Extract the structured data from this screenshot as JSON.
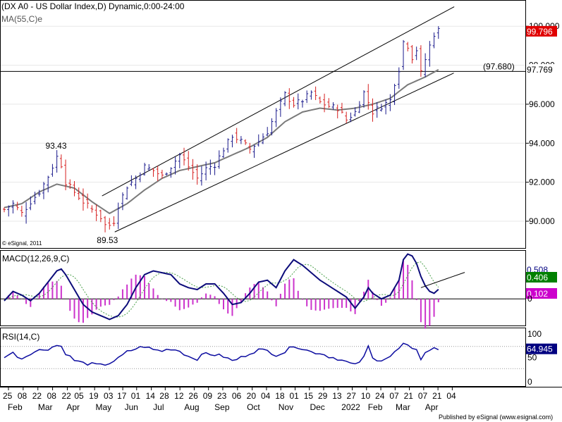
{
  "header": {
    "title": "(DX A0 - US Dollar Index,D) Dynamic,0:00-24:00",
    "ma_label": "MA(55,C)e",
    "watermark": "© eSignal, 2011",
    "publisher": "Published by eSignal (www.esignal.com)"
  },
  "colors": {
    "up": "#1a1a8c",
    "down": "#d62020",
    "ma": "#7a7a7a",
    "macd": "#0c0c7a",
    "signal": "#4aa04a",
    "hist": "#cc33cc",
    "rsi": "#0c0ca0",
    "price_badge": "#e00000",
    "macd_badge": "#000080",
    "signal_badge": "#008000",
    "hist_badge": "#cc00cc",
    "rsi_badge": "#000080"
  },
  "chart_data": {
    "type": "line",
    "price": {
      "ylim": [
        88.7,
        101.2
      ],
      "ticks": [
        {
          "value": 90,
          "label": "90.000"
        },
        {
          "value": 92,
          "label": "92.000"
        },
        {
          "value": 94,
          "label": "94.000"
        },
        {
          "value": 96,
          "label": "96.000"
        },
        {
          "value": 98,
          "label": "98.000"
        },
        {
          "value": 100,
          "label": "100.000"
        }
      ],
      "last_value": 99.796,
      "last_label": "99.796",
      "ma_last_label": "97.769",
      "ma_last_value": 97.769,
      "horizontal_level": 97.68,
      "horizontal_level_label": "(97.680)",
      "annotations": [
        {
          "label": "93.43",
          "x": 12.3,
          "value": 93.43
        },
        {
          "label": "89.53",
          "x": 24.0,
          "value": 89.53
        }
      ],
      "channel_upper": [
        {
          "x": 22.3,
          "y": 91.3
        },
        {
          "x": 102.6,
          "y": 101.0
        }
      ],
      "channel_lower": [
        {
          "x": 25.2,
          "y": 89.45
        },
        {
          "x": 102.5,
          "y": 97.6
        }
      ],
      "ohlc_anchors": [
        [
          0,
          90.6
        ],
        [
          2,
          90.9
        ],
        [
          4,
          90.4
        ],
        [
          6,
          91.0
        ],
        [
          8,
          91.5
        ],
        [
          10,
          92.3
        ],
        [
          12,
          93.3
        ],
        [
          13,
          92.9
        ],
        [
          14,
          92.0
        ],
        [
          16,
          91.5
        ],
        [
          18,
          91.0
        ],
        [
          20,
          90.6
        ],
        [
          22,
          90.2
        ],
        [
          23,
          89.8
        ],
        [
          24,
          89.8
        ],
        [
          25,
          90.0
        ],
        [
          26,
          90.8
        ],
        [
          28,
          91.8
        ],
        [
          30,
          92.2
        ],
        [
          32,
          92.8
        ],
        [
          34,
          92.6
        ],
        [
          36,
          92.3
        ],
        [
          38,
          92.8
        ],
        [
          40,
          93.4
        ],
        [
          42,
          92.8
        ],
        [
          44,
          92.2
        ],
        [
          46,
          92.7
        ],
        [
          48,
          92.9
        ],
        [
          50,
          93.7
        ],
        [
          52,
          94.4
        ],
        [
          54,
          94.1
        ],
        [
          56,
          93.7
        ],
        [
          58,
          94.1
        ],
        [
          60,
          94.6
        ],
        [
          62,
          95.6
        ],
        [
          64,
          96.5
        ],
        [
          66,
          96.0
        ],
        [
          68,
          96.2
        ],
        [
          70,
          96.6
        ],
        [
          72,
          96.1
        ],
        [
          74,
          95.9
        ],
        [
          76,
          95.8
        ],
        [
          78,
          95.2
        ],
        [
          80,
          95.6
        ],
        [
          82,
          96.6
        ],
        [
          84,
          95.6
        ],
        [
          86,
          95.9
        ],
        [
          88,
          96.2
        ],
        [
          89,
          97.1
        ],
        [
          90,
          97.8
        ],
        [
          91,
          99.2
        ],
        [
          92,
          99.0
        ],
        [
          93,
          98.4
        ],
        [
          94,
          98.8
        ],
        [
          95,
          97.6
        ],
        [
          96,
          98.3
        ],
        [
          97,
          99.0
        ],
        [
          98,
          99.6
        ],
        [
          99,
          99.8
        ]
      ],
      "ma_anchors": [
        [
          0,
          90.7
        ],
        [
          4,
          90.9
        ],
        [
          8,
          91.5
        ],
        [
          12,
          91.9
        ],
        [
          16,
          91.7
        ],
        [
          20,
          91.0
        ],
        [
          24,
          90.4
        ],
        [
          28,
          90.9
        ],
        [
          32,
          91.6
        ],
        [
          36,
          92.2
        ],
        [
          40,
          92.6
        ],
        [
          44,
          92.8
        ],
        [
          48,
          93.0
        ],
        [
          52,
          93.4
        ],
        [
          56,
          93.8
        ],
        [
          60,
          94.3
        ],
        [
          64,
          95.1
        ],
        [
          68,
          95.6
        ],
        [
          72,
          95.8
        ],
        [
          76,
          95.7
        ],
        [
          80,
          95.8
        ],
        [
          84,
          96.0
        ],
        [
          88,
          96.3
        ],
        [
          92,
          97.0
        ],
        [
          96,
          97.4
        ],
        [
          99,
          97.77
        ]
      ]
    },
    "macd": {
      "title": "MACD(12,26,9,C)",
      "ylim": [
        -1.35,
        2.5
      ],
      "zero_label": "0",
      "macd_last": 0.508,
      "signal_last": 0.406,
      "hist_last": 0.102,
      "macd_label": "0.508",
      "signal_label": "0.406",
      "hist_label": "0.102",
      "trendline": [
        {
          "x": 95.0,
          "y": 0.6
        },
        {
          "x": 105.0,
          "y": 1.42
        }
      ],
      "macd_anchors": [
        [
          0,
          -0.1
        ],
        [
          2,
          0.4
        ],
        [
          4,
          0.2
        ],
        [
          6,
          -0.1
        ],
        [
          8,
          0.3
        ],
        [
          10,
          0.9
        ],
        [
          12,
          1.5
        ],
        [
          13,
          1.6
        ],
        [
          14,
          1.3
        ],
        [
          16,
          0.5
        ],
        [
          18,
          -0.3
        ],
        [
          20,
          -0.7
        ],
        [
          22,
          -0.9
        ],
        [
          24,
          -1.1
        ],
        [
          26,
          -0.9
        ],
        [
          28,
          -0.3
        ],
        [
          30,
          0.6
        ],
        [
          32,
          1.3
        ],
        [
          34,
          1.5
        ],
        [
          36,
          1.4
        ],
        [
          38,
          1.3
        ],
        [
          40,
          0.8
        ],
        [
          42,
          0.6
        ],
        [
          44,
          0.5
        ],
        [
          46,
          0.8
        ],
        [
          48,
          0.8
        ],
        [
          50,
          0.3
        ],
        [
          52,
          -0.3
        ],
        [
          54,
          -0.2
        ],
        [
          56,
          0.3
        ],
        [
          58,
          0.9
        ],
        [
          60,
          1.0
        ],
        [
          62,
          0.6
        ],
        [
          64,
          1.5
        ],
        [
          66,
          2.1
        ],
        [
          68,
          1.8
        ],
        [
          70,
          1.4
        ],
        [
          72,
          1.0
        ],
        [
          74,
          0.7
        ],
        [
          76,
          0.4
        ],
        [
          78,
          0.1
        ],
        [
          80,
          -0.5
        ],
        [
          82,
          0.1
        ],
        [
          83,
          0.6
        ],
        [
          84,
          0.3
        ],
        [
          86,
          0.0
        ],
        [
          88,
          0.2
        ],
        [
          90,
          1.0
        ],
        [
          91,
          2.1
        ],
        [
          92,
          2.4
        ],
        [
          93,
          2.3
        ],
        [
          94,
          1.9
        ],
        [
          95,
          1.2
        ],
        [
          96,
          0.7
        ],
        [
          97,
          0.4
        ],
        [
          98,
          0.3
        ],
        [
          99,
          0.508
        ]
      ]
    },
    "rsi": {
      "title": "RSI(14,C)",
      "ylim": [
        0,
        100
      ],
      "ticks": [
        {
          "value": 0,
          "label": "0"
        },
        {
          "value": 50,
          "label": "50"
        },
        {
          "value": 100,
          "label": "100"
        }
      ],
      "levels": [
        30,
        70
      ],
      "last_value": 64.945,
      "last_label": "64.945",
      "anchors": [
        [
          0,
          52
        ],
        [
          2,
          58
        ],
        [
          4,
          48
        ],
        [
          6,
          58
        ],
        [
          8,
          63
        ],
        [
          10,
          66
        ],
        [
          12,
          72
        ],
        [
          13,
          70
        ],
        [
          14,
          58
        ],
        [
          16,
          45
        ],
        [
          18,
          40
        ],
        [
          20,
          38
        ],
        [
          22,
          36
        ],
        [
          24,
          40
        ],
        [
          26,
          48
        ],
        [
          28,
          60
        ],
        [
          30,
          66
        ],
        [
          32,
          70
        ],
        [
          34,
          64
        ],
        [
          36,
          62
        ],
        [
          38,
          66
        ],
        [
          40,
          62
        ],
        [
          42,
          52
        ],
        [
          44,
          48
        ],
        [
          46,
          58
        ],
        [
          48,
          55
        ],
        [
          50,
          52
        ],
        [
          52,
          44
        ],
        [
          54,
          50
        ],
        [
          56,
          58
        ],
        [
          58,
          64
        ],
        [
          60,
          62
        ],
        [
          62,
          55
        ],
        [
          64,
          60
        ],
        [
          66,
          72
        ],
        [
          68,
          66
        ],
        [
          70,
          60
        ],
        [
          72,
          58
        ],
        [
          74,
          52
        ],
        [
          76,
          48
        ],
        [
          78,
          42
        ],
        [
          80,
          36
        ],
        [
          82,
          50
        ],
        [
          83,
          70
        ],
        [
          84,
          48
        ],
        [
          86,
          46
        ],
        [
          88,
          52
        ],
        [
          90,
          66
        ],
        [
          91,
          74
        ],
        [
          92,
          70
        ],
        [
          93,
          64
        ],
        [
          94,
          66
        ],
        [
          95,
          48
        ],
        [
          96,
          58
        ],
        [
          97,
          64
        ],
        [
          98,
          66
        ],
        [
          99,
          64.945
        ]
      ]
    },
    "x_axis": {
      "bars": 100,
      "date_labels": [
        {
          "i": 0,
          "label": "25"
        },
        {
          "i": 3.5,
          "label": "08"
        },
        {
          "i": 7,
          "label": "22"
        },
        {
          "i": 10.5,
          "label": "08"
        },
        {
          "i": 14,
          "label": "22"
        },
        {
          "i": 17,
          "label": "05"
        },
        {
          "i": 20.5,
          "label": "19"
        },
        {
          "i": 24,
          "label": "03"
        },
        {
          "i": 27.2,
          "label": "17"
        },
        {
          "i": 30.5,
          "label": "01"
        },
        {
          "i": 34,
          "label": "14"
        },
        {
          "i": 37.3,
          "label": "28"
        },
        {
          "i": 40.8,
          "label": "12"
        },
        {
          "i": 44.2,
          "label": "26"
        },
        {
          "i": 47.6,
          "label": "09"
        },
        {
          "i": 51,
          "label": "23"
        },
        {
          "i": 54.5,
          "label": "06"
        },
        {
          "i": 58,
          "label": "20"
        },
        {
          "i": 61.4,
          "label": "04"
        },
        {
          "i": 64.8,
          "label": "18"
        },
        {
          "i": 68.2,
          "label": "01"
        },
        {
          "i": 71.6,
          "label": "15"
        },
        {
          "i": 75,
          "label": "29"
        },
        {
          "i": 78.4,
          "label": "13"
        },
        {
          "i": 81.8,
          "label": "27"
        },
        {
          "i": 85.2,
          "label": "10"
        },
        {
          "i": 88.6,
          "label": "24"
        },
        {
          "i": 92,
          "label": "07"
        },
        {
          "i": 95.4,
          "label": "21"
        },
        {
          "i": 98.8,
          "label": "07"
        },
        {
          "i": 102.2,
          "label": "21"
        },
        {
          "i": 105.6,
          "label": "04"
        }
      ],
      "month_labels": [
        {
          "i": 1.5,
          "label": "Feb"
        },
        {
          "i": 8.7,
          "label": "Mar"
        },
        {
          "i": 15.5,
          "label": "Apr"
        },
        {
          "i": 22.4,
          "label": "May"
        },
        {
          "i": 29.3,
          "label": "Jun"
        },
        {
          "i": 36.1,
          "label": "Jul"
        },
        {
          "i": 43.5,
          "label": "Aug"
        },
        {
          "i": 50.7,
          "label": "Sep"
        },
        {
          "i": 58.4,
          "label": "Oct"
        },
        {
          "i": 65.9,
          "label": "Nov"
        },
        {
          "i": 73.4,
          "label": "Dec"
        },
        {
          "i": 80.9,
          "label": "2022"
        },
        {
          "i": 87.2,
          "label": "Feb"
        },
        {
          "i": 93.8,
          "label": "Mar"
        },
        {
          "i": 100.8,
          "label": "Apr"
        }
      ]
    }
  }
}
